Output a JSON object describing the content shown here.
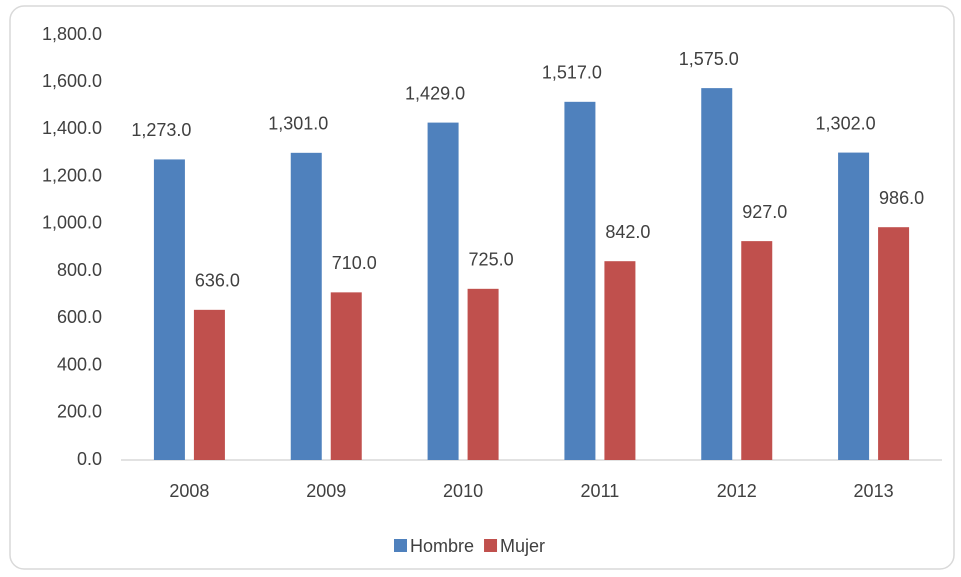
{
  "chart_data": {
    "type": "bar",
    "categories": [
      "2008",
      "2009",
      "2010",
      "2011",
      "2012",
      "2013"
    ],
    "series": [
      {
        "name": "Hombre",
        "color": "#4f81bd",
        "values": [
          1273,
          1301,
          1429,
          1517,
          1575,
          1302
        ],
        "value_labels": [
          "1,273.0",
          "1,301.0",
          "1,429.0",
          "1,517.0",
          "1,575.0",
          "1,302.0"
        ]
      },
      {
        "name": "Mujer",
        "color": "#c0504d",
        "values": [
          636,
          710,
          725,
          842,
          927,
          986
        ],
        "value_labels": [
          "636.0",
          "710.0",
          "725.0",
          "842.0",
          "927.0",
          "986.0"
        ]
      }
    ],
    "ylim": [
      0,
      1800
    ],
    "yticks": [
      {
        "value": 0,
        "label": "0.0"
      },
      {
        "value": 200,
        "label": "200.0"
      },
      {
        "value": 400,
        "label": "400.0"
      },
      {
        "value": 600,
        "label": "600.0"
      },
      {
        "value": 800,
        "label": "800.0"
      },
      {
        "value": 1000,
        "label": "1,000.0"
      },
      {
        "value": 1200,
        "label": "1,200.0"
      },
      {
        "value": 1400,
        "label": "1,400.0"
      },
      {
        "value": 1600,
        "label": "1,600.0"
      },
      {
        "value": 1800,
        "label": "1,800.0"
      }
    ],
    "grid": false,
    "legend": "bottom"
  }
}
